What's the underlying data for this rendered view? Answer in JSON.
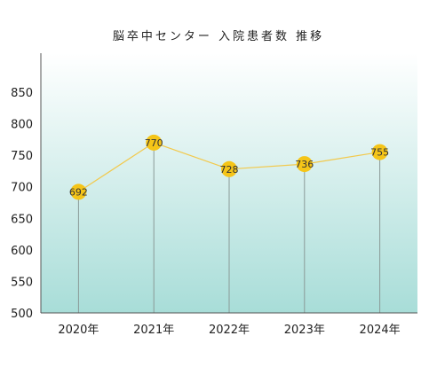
{
  "chart_data": {
    "type": "line",
    "title": "脳卒中センター 入院患者数 推移",
    "categories": [
      "2020年",
      "2021年",
      "2022年",
      "2023年",
      "2024年"
    ],
    "series": [
      {
        "values": [
          692,
          770,
          728,
          736,
          755
        ]
      }
    ],
    "ylim": [
      500,
      850
    ],
    "yticks": [
      500,
      550,
      600,
      650,
      700,
      750,
      800,
      850
    ],
    "data_labels": true,
    "legend": "none",
    "grid": false,
    "colors": {
      "line": "#f2c94c",
      "marker": "#f5c518",
      "stem": "#8a9a97",
      "area_top": "#ffffff",
      "area_bottom": "#a8ddd8",
      "axis": "#555555"
    }
  }
}
